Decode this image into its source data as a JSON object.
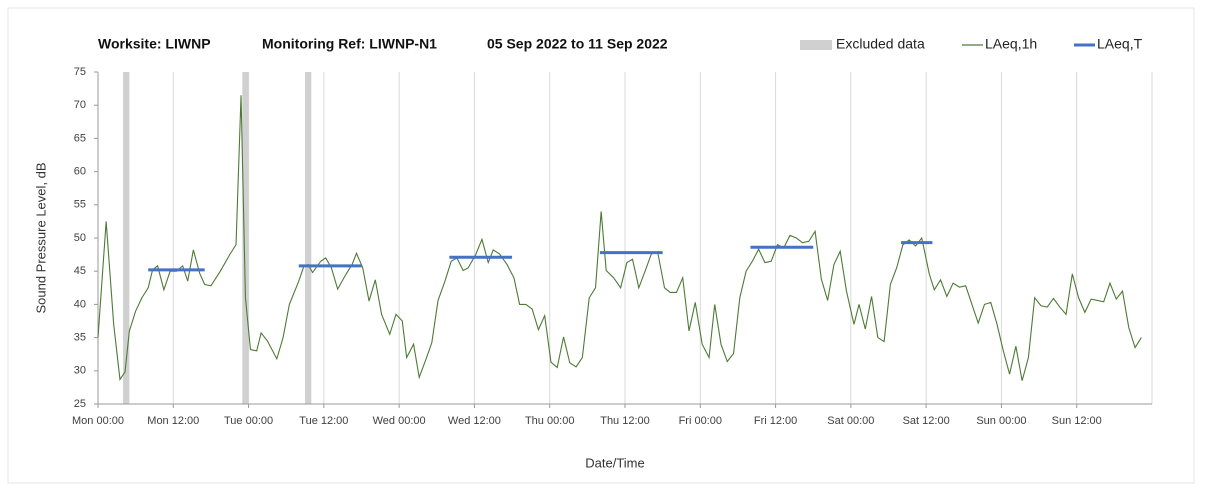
{
  "chart_data": {
    "type": "line",
    "title_segments": [
      "Worksite: LIWNP",
      "Monitoring Ref: LIWNP-N1",
      "05 Sep 2022 to 11 Sep 2022"
    ],
    "x_label": "Date/Time",
    "y_label": "Sound Pressure Level, dB",
    "xlim": [
      0,
      168
    ],
    "ylim": [
      25,
      75
    ],
    "yticks": [
      25,
      30,
      35,
      40,
      45,
      50,
      55,
      60,
      65,
      70,
      75
    ],
    "xticks": [
      {
        "value": 0,
        "label": "Mon 00:00"
      },
      {
        "value": 12,
        "label": "Mon 12:00"
      },
      {
        "value": 24,
        "label": "Tue 00:00"
      },
      {
        "value": 36,
        "label": "Tue 12:00"
      },
      {
        "value": 48,
        "label": "Wed 00:00"
      },
      {
        "value": 60,
        "label": "Wed 12:00"
      },
      {
        "value": 72,
        "label": "Thu 00:00"
      },
      {
        "value": 84,
        "label": "Thu 12:00"
      },
      {
        "value": 96,
        "label": "Fri 00:00"
      },
      {
        "value": 108,
        "label": "Fri 12:00"
      },
      {
        "value": 120,
        "label": "Sat 00:00"
      },
      {
        "value": 132,
        "label": "Sat 12:00"
      },
      {
        "value": 144,
        "label": "Sun 00:00"
      },
      {
        "value": 156,
        "label": "Sun 12:00"
      }
    ],
    "grid": "x",
    "excluded": {
      "name": "Excluded data",
      "color": "#d0d0d0",
      "ranges": [
        [
          4,
          5
        ],
        [
          23,
          24
        ],
        [
          33,
          34
        ]
      ]
    },
    "series": [
      {
        "name": "LAeq,1h",
        "color": "#4e7a35",
        "x": [
          0,
          1.3,
          2.5,
          3.5,
          4.3,
          5,
          6,
          7,
          8,
          8.7,
          9.5,
          10.5,
          11.5,
          12.5,
          13.5,
          14.3,
          15.2,
          16.2,
          17,
          18,
          19.5,
          21,
          22,
          22.8,
          23.5,
          24.3,
          25.3,
          26,
          27,
          28.5,
          29.5,
          30.5,
          32,
          32.8,
          33.5,
          34.2,
          35.5,
          36.3,
          37.2,
          38.2,
          39.5,
          40.5,
          41.2,
          42.2,
          43.2,
          44.2,
          45.2,
          46.5,
          47.5,
          48.5,
          49.2,
          50.3,
          51.2,
          52.3,
          53.2,
          54.2,
          55.3,
          56.3,
          57.2,
          58.2,
          59,
          60.2,
          61.2,
          62.2,
          63,
          64,
          65.2,
          66.3,
          67.2,
          68.2,
          69.2,
          70.2,
          71.2,
          72.2,
          73.2,
          74.2,
          75.2,
          76.2,
          77.2,
          78.3,
          79.3,
          80.2,
          81,
          82.2,
          83.3,
          84.3,
          85.2,
          86.2,
          87.2,
          88.2,
          89.2,
          90.3,
          91.2,
          92.2,
          93.2,
          94.2,
          95.2,
          96.3,
          97.4,
          98.3,
          99.3,
          100.3,
          101.3,
          102.3,
          103.3,
          104.3,
          105.3,
          106.3,
          107.3,
          108.3,
          109.3,
          110.3,
          111.3,
          112.3,
          113.3,
          114.3,
          115.3,
          116.3,
          117.3,
          118.3,
          119.3,
          120.5,
          121.3,
          122.3,
          123.3,
          124.3,
          125.3,
          126.3,
          127.3,
          128.3,
          129.3,
          130.3,
          131.3,
          132.5,
          133.3,
          134.3,
          135.3,
          136.3,
          137.3,
          138.3,
          139.3,
          140.3,
          141.3,
          142.3,
          143.3,
          144.3,
          145.3,
          146.3,
          147.3,
          148.3,
          149.3,
          150.3,
          151.3,
          152.3,
          153.3,
          154.3,
          155.3,
          156.3,
          157.3,
          158.3,
          159.3,
          160.3,
          161.3,
          162.3,
          163.3,
          164.3,
          165.3,
          166.3
        ],
        "values": [
          35,
          52.5,
          37,
          28.7,
          29.8,
          36,
          39,
          41,
          42.5,
          45.2,
          45.8,
          42.2,
          45,
          45,
          45.8,
          43.5,
          48.2,
          44.7,
          43,
          42.8,
          45,
          47.5,
          49,
          71.5,
          41,
          33.2,
          33,
          35.7,
          34.5,
          31.8,
          35,
          40,
          43.5,
          45.7,
          46,
          44.8,
          46.5,
          47,
          45.5,
          42.3,
          44.5,
          46,
          47.7,
          45.5,
          40.5,
          43.7,
          38.5,
          35.5,
          38.5,
          37.5,
          32,
          34,
          29,
          31.8,
          34.2,
          40.6,
          43.5,
          46.5,
          47,
          45.1,
          45.5,
          47.5,
          49.8,
          46.3,
          48.2,
          47.6,
          46,
          44,
          40,
          40,
          39.3,
          36.2,
          38.3,
          31.3,
          30.5,
          35.1,
          31.2,
          30.6,
          32,
          41,
          42.5,
          54,
          45.1,
          44,
          42.5,
          46.3,
          46.8,
          42.5,
          45,
          47.6,
          47.9,
          42.5,
          41.8,
          41.8,
          44,
          36,
          40.3,
          34,
          32,
          40,
          34,
          31.4,
          32.6,
          41,
          45,
          46.5,
          48.3,
          46.3,
          46.5,
          49,
          48.5,
          50.4,
          50,
          49.3,
          49.5,
          51,
          43.8,
          40.6,
          46,
          48,
          42,
          37,
          40,
          36.3,
          41.2,
          35,
          34.4,
          43,
          45.5,
          49,
          49.7,
          48.8,
          50,
          44.6,
          42.2,
          43.7,
          41.2,
          43.2,
          42.6,
          42.8,
          40,
          37.2,
          40,
          40.3,
          37,
          33,
          29.5,
          33.7,
          28.5,
          32,
          41,
          39.8,
          39.6,
          40.9,
          39.6,
          38.5,
          44.6,
          41,
          38.8,
          40.8,
          40.6,
          40.4,
          43.2,
          40.8,
          42,
          36.5,
          33.5,
          35
        ]
      },
      {
        "name": "LAeq,T",
        "color": "#4472c4",
        "x_start": [
          8,
          32,
          56,
          80,
          104,
          128
        ],
        "x_end": [
          17,
          42,
          66,
          90,
          114,
          133
        ],
        "values": [
          45.2,
          45.8,
          47.1,
          47.8,
          48.6,
          49.3
        ]
      }
    ]
  }
}
